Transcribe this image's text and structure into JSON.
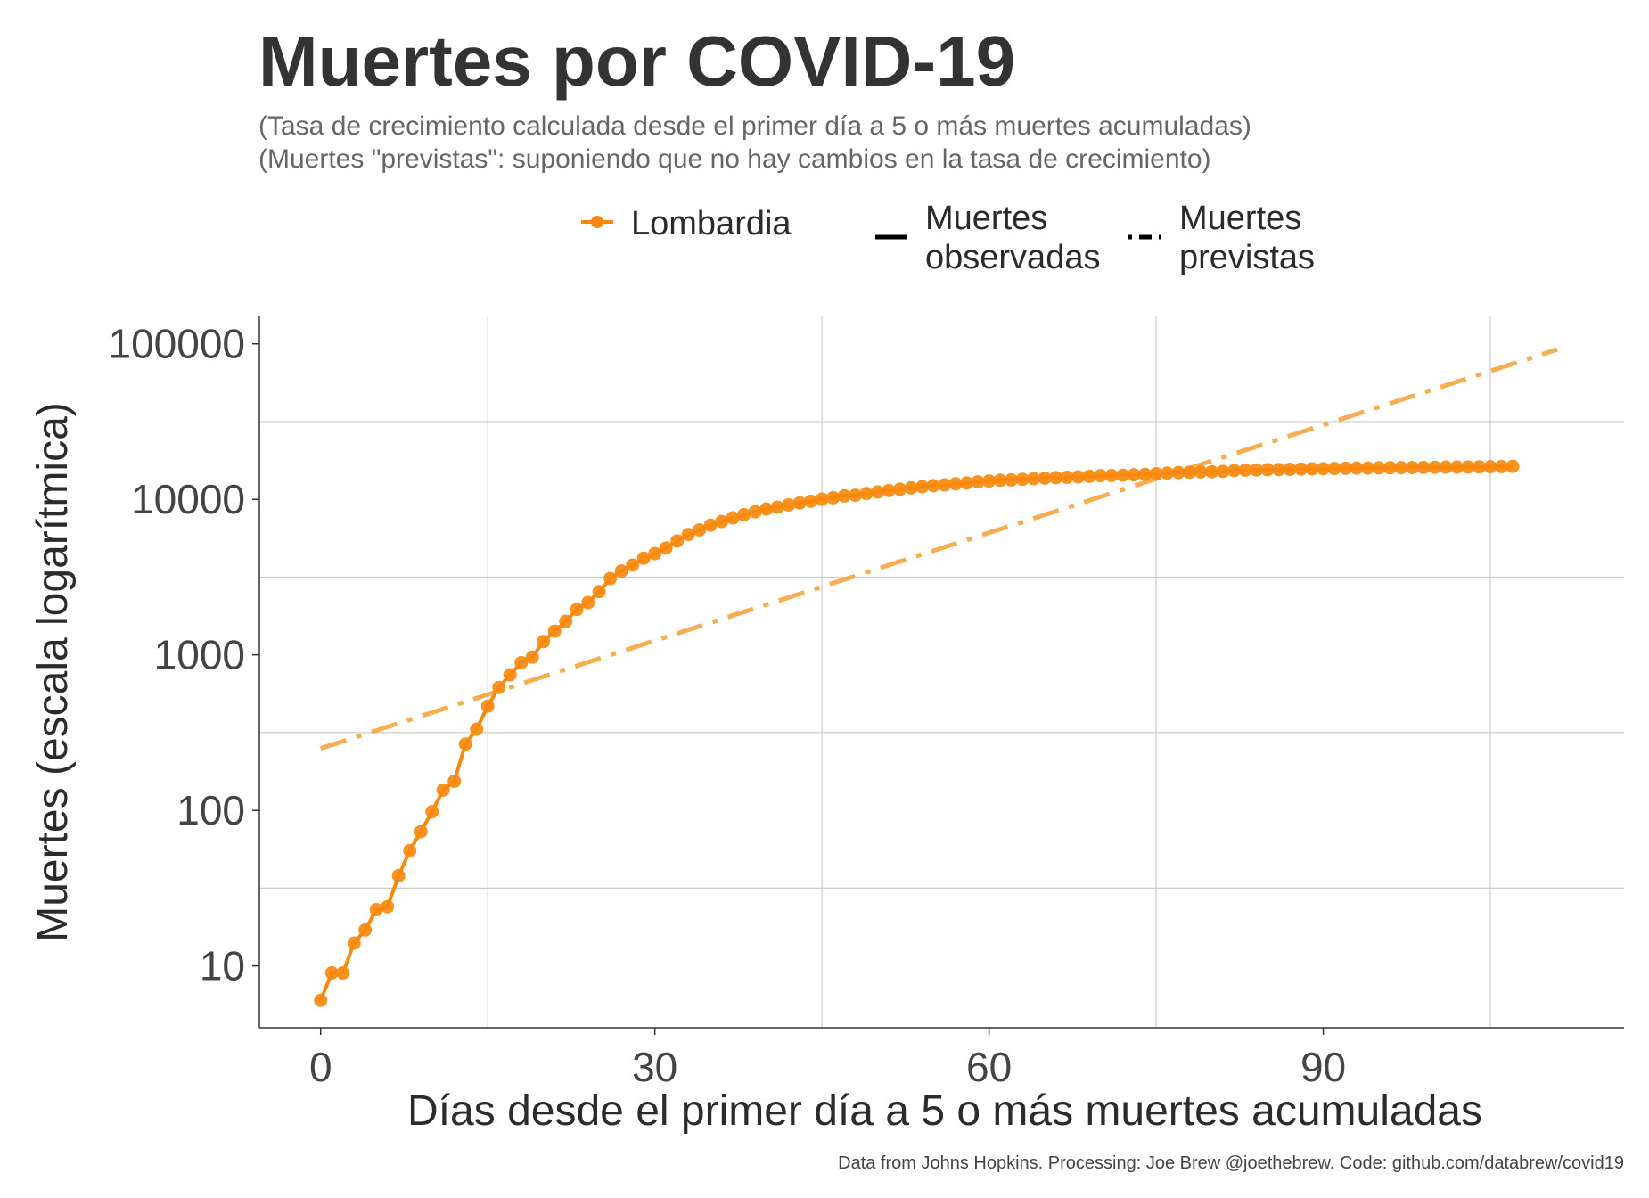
{
  "colors": {
    "series": "#F7890E",
    "predicted": "#F7A540",
    "text": "#333333",
    "grid": "#cccccc"
  },
  "chart_data": {
    "type": "line",
    "title": "Muertes por COVID-19",
    "subtitle_lines": [
      "(Tasa de crecimiento calculada desde el primer día a 5 o más muertes acumuladas)",
      "(Muertes \"previstas\": suponiendo que no hay cambios en la tasa de crecimiento)"
    ],
    "xlabel": "Días desde el primer día a 5 o más muertes acumuladas",
    "ylabel": "Muertes (escala logarítmica)",
    "caption": "Data from Johns Hopkins. Processing: Joe Brew @joethebrew. Code: github.com/databrew/covid19",
    "x_scale": "linear",
    "y_scale": "log",
    "xlim": [
      -5.5,
      117
    ],
    "ylim": [
      4,
      150000
    ],
    "x_ticks": [
      0,
      30,
      60,
      90
    ],
    "y_ticks": [
      10,
      100,
      1000,
      10000,
      100000
    ],
    "y_tick_labels": [
      "10",
      "100",
      "1000",
      "10000",
      "100000"
    ],
    "grid": true,
    "legend": {
      "placement": "top",
      "series_label": "Lombardia",
      "observed_label_lines": [
        "Muertes",
        "observadas"
      ],
      "predicted_label_lines": [
        "Muertes",
        "previstas"
      ]
    },
    "series": [
      {
        "name": "Lombardia",
        "style": "line-with-points",
        "x": [
          0,
          1,
          2,
          3,
          4,
          5,
          6,
          7,
          8,
          9,
          10,
          11,
          12,
          13,
          14,
          15,
          16,
          17,
          18,
          19,
          20,
          21,
          22,
          23,
          24,
          25,
          26,
          27,
          28,
          29,
          30,
          31,
          32,
          33,
          34,
          35,
          36,
          37,
          38,
          39,
          40,
          41,
          42,
          43,
          44,
          45,
          46,
          47,
          48,
          49,
          50,
          51,
          52,
          53,
          54,
          55,
          56,
          57,
          58,
          59,
          60,
          61,
          62,
          63,
          64,
          65,
          66,
          67,
          68,
          69,
          70,
          71,
          72,
          73,
          74,
          75,
          76,
          77,
          78,
          79,
          80,
          81,
          82,
          83,
          84,
          85,
          86,
          87,
          88,
          89,
          90,
          91,
          92,
          93,
          94,
          95,
          96,
          97,
          98,
          99,
          100,
          101,
          102,
          103,
          104,
          105,
          106,
          107
        ],
        "values": [
          6,
          9,
          9,
          14,
          17,
          23,
          24,
          38,
          55,
          73,
          98,
          135,
          154,
          267,
          333,
          468,
          617,
          744,
          890,
          966,
          1218,
          1420,
          1640,
          1959,
          2168,
          2549,
          3095,
          3456,
          3776,
          4178,
          4474,
          4861,
          5402,
          5944,
          6360,
          6818,
          7199,
          7593,
          7960,
          8311,
          8656,
          8905,
          9202,
          9484,
          9722,
          10022,
          10238,
          10511,
          10621,
          10901,
          11142,
          11377,
          11608,
          11851,
          12050,
          12232,
          12376,
          12579,
          12740,
          12940,
          13109,
          13269,
          13325,
          13449,
          13575,
          13679,
          13772,
          13860,
          13939,
          14049,
          14189,
          14231,
          14294,
          14379,
          14462,
          14611,
          14745,
          14881,
          14927,
          15003,
          15054,
          15116,
          15296,
          15411,
          15449,
          15519,
          15543,
          15596,
          15662,
          15705,
          15729,
          15784,
          15840,
          15876,
          15896,
          15924,
          15954,
          15983,
          16014,
          16050,
          16079,
          16112,
          16131,
          16143,
          16172,
          16201,
          16249,
          16302
        ]
      },
      {
        "name": "Muertes previstas",
        "style": "dash-dot",
        "x": [
          0,
          111
        ],
        "values": [
          250,
          92000
        ]
      }
    ]
  }
}
